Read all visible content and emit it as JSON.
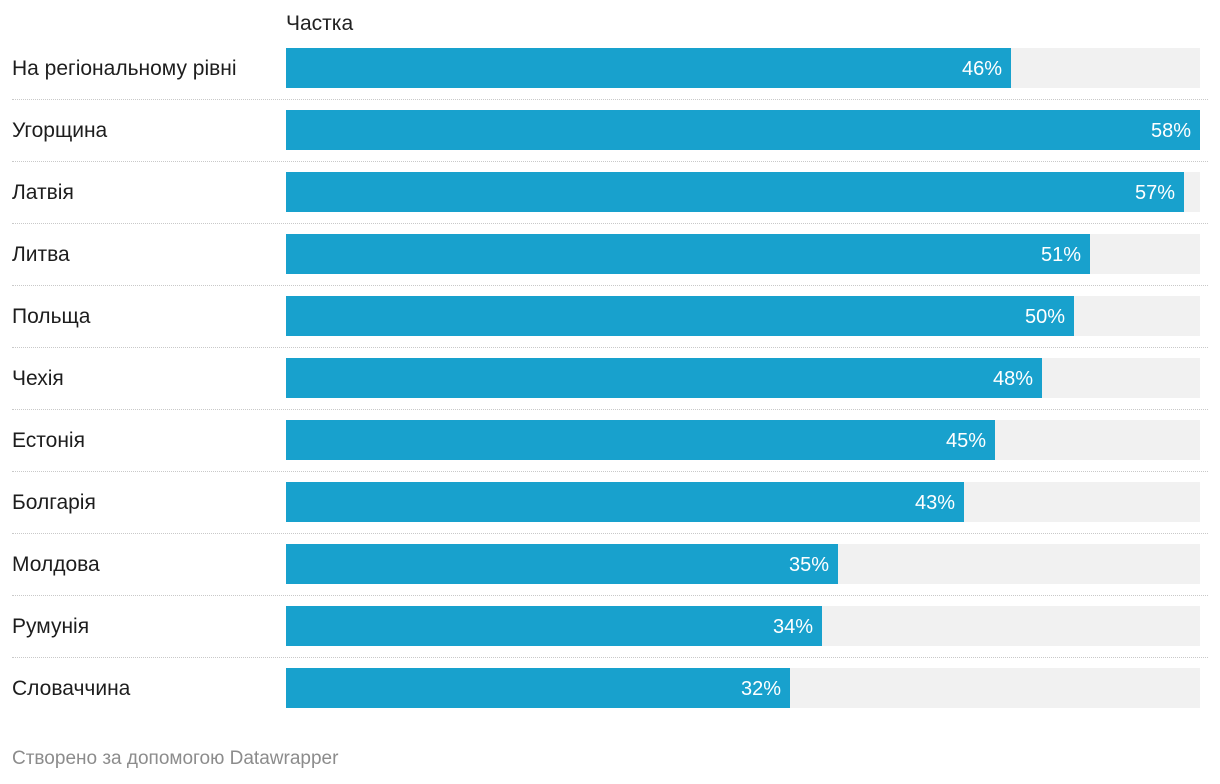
{
  "chart_data": {
    "type": "bar",
    "orientation": "horizontal",
    "column_header": "Частка",
    "categories": [
      "На регіональному рівні",
      "Угорщина",
      "Латвія",
      "Литва",
      "Польща",
      "Чехія",
      "Естонія",
      "Болгарія",
      "Молдова",
      "Румунія",
      "Словаччина"
    ],
    "values": [
      46,
      58,
      57,
      51,
      50,
      48,
      45,
      43,
      35,
      34,
      32
    ],
    "value_labels": [
      "46%",
      "58%",
      "57%",
      "51%",
      "50%",
      "48%",
      "45%",
      "43%",
      "35%",
      "34%",
      "32%"
    ],
    "xlim": [
      0,
      58
    ],
    "unit": "%"
  },
  "colors": {
    "bar": "#18a1cd",
    "track": "#f1f1f1",
    "value_text": "#ffffff"
  },
  "footer": "Створено за допомогою Datawrapper"
}
